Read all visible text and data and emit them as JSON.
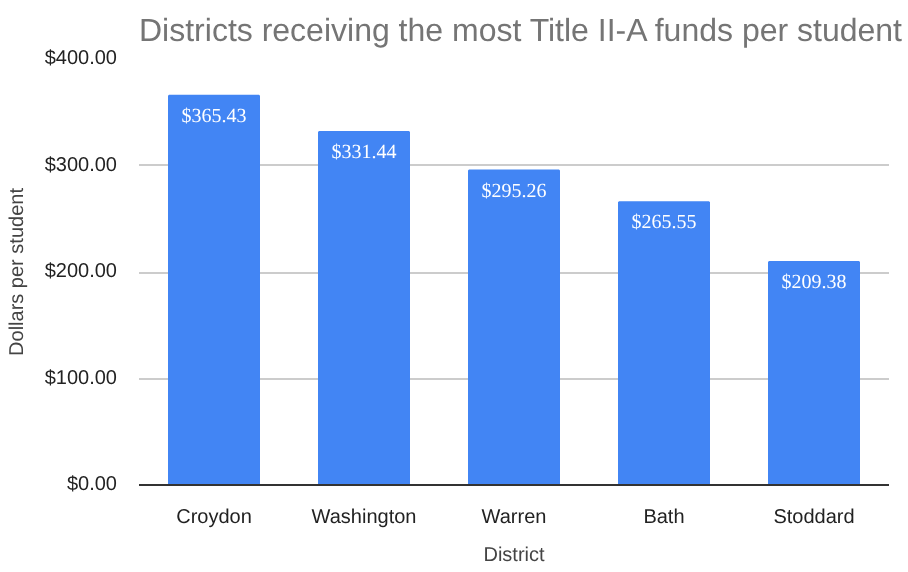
{
  "chart_data": {
    "type": "bar",
    "title": "Districts receiving the most Title II-A funds per student",
    "xlabel": "District",
    "ylabel": "Dollars per student",
    "categories": [
      "Croydon",
      "Washington",
      "Warren",
      "Bath",
      "Stoddard"
    ],
    "values": [
      365.43,
      331.44,
      295.26,
      265.55,
      209.38
    ],
    "value_labels": [
      "$365.43",
      "$331.44",
      "$295.26",
      "$265.55",
      "$209.38"
    ],
    "color": "#4285f4",
    "ylim": [
      0,
      400
    ],
    "yticks": [
      {
        "value": 0,
        "label": "$0.00"
      },
      {
        "value": 100,
        "label": "$100.00"
      },
      {
        "value": 200,
        "label": "$200.00"
      },
      {
        "value": 300,
        "label": "$300.00"
      },
      {
        "value": 400,
        "label": "$400.00"
      }
    ],
    "grid": "y"
  }
}
